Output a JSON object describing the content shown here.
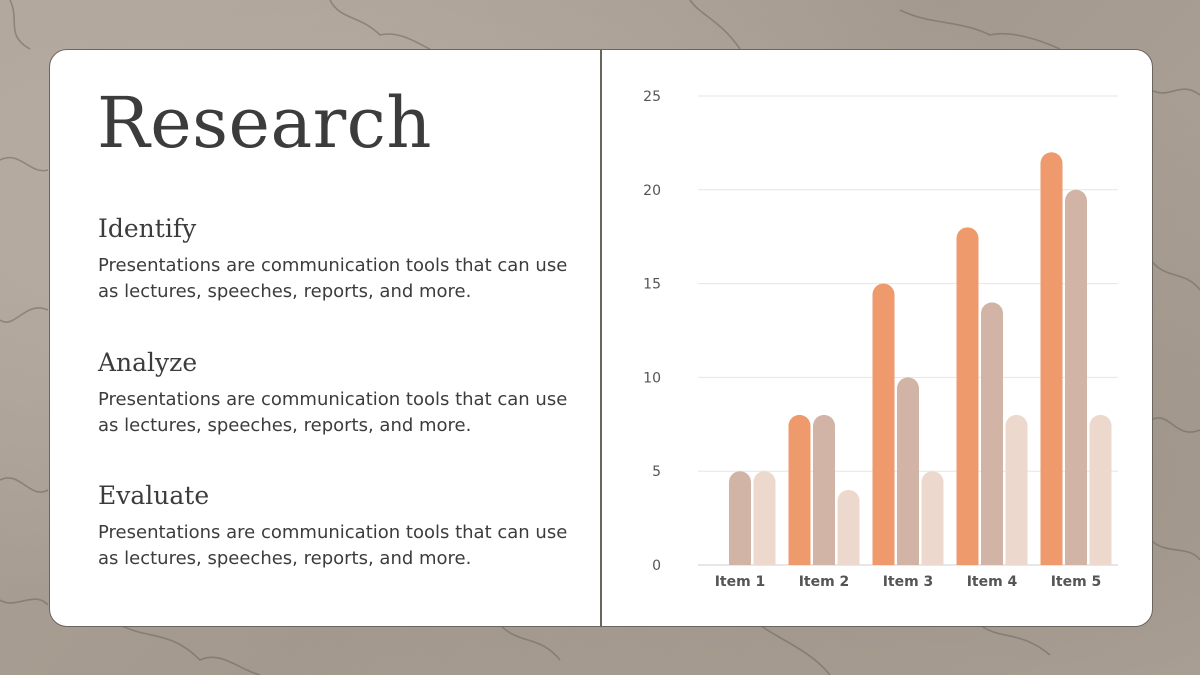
{
  "slide": {
    "title": "Research",
    "sections": [
      {
        "heading": "Identify",
        "body": "Presentations are communication tools that can use as lectures, speeches, reports, and more."
      },
      {
        "heading": "Analyze",
        "body": "Presentations are communication tools that can use as lectures, speeches, reports, and more."
      },
      {
        "heading": "Evaluate",
        "body": "Presentations are communication tools that can use as lectures, speeches, reports, and more."
      }
    ]
  },
  "colors": {
    "series1": "#ee9a6c",
    "series2": "#d2b4a7",
    "series3": "#ecd8cd",
    "grid": "#e6e6e6",
    "axis_text": "#555555"
  },
  "chart_data": {
    "type": "bar",
    "categories": [
      "Item 1",
      "Item 2",
      "Item 3",
      "Item 4",
      "Item 5"
    ],
    "series": [
      {
        "values": [
          0,
          8,
          15,
          18,
          22
        ]
      },
      {
        "values": [
          5,
          8,
          10,
          14,
          20
        ]
      },
      {
        "values": [
          5,
          4,
          5,
          8,
          8
        ]
      }
    ],
    "yticks": [
      0,
      5,
      10,
      15,
      20,
      25
    ],
    "ylim": [
      0,
      25
    ],
    "grid": true,
    "legend": "none"
  }
}
